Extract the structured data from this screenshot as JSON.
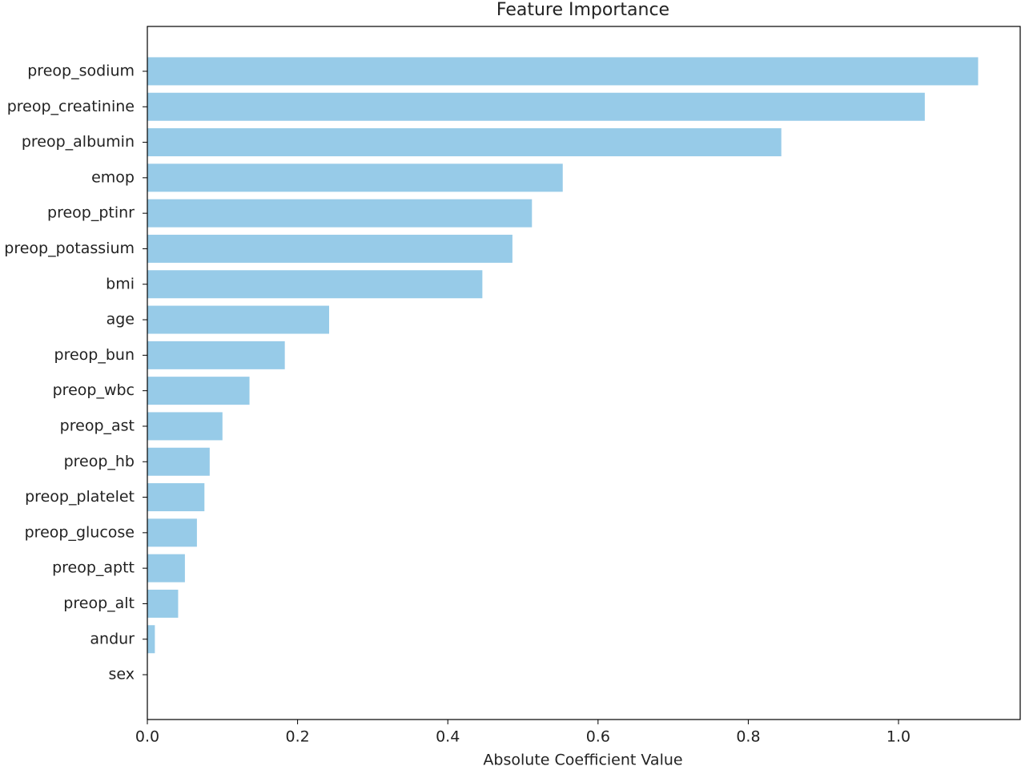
{
  "chart_data": {
    "type": "barh",
    "title": "Feature Importance",
    "x_label": "Absolute Coefficient Value",
    "categories": [
      "preop_sodium",
      "preop_creatinine",
      "preop_albumin",
      "emop",
      "preop_ptinr",
      "preop_potassium",
      "bmi",
      "age",
      "preop_bun",
      "preop_wbc",
      "preop_ast",
      "preop_hb",
      "preop_platelet",
      "preop_glucose",
      "preop_aptt",
      "preop_alt",
      "andur",
      "sex"
    ],
    "values": [
      1.106,
      1.035,
      0.844,
      0.553,
      0.512,
      0.486,
      0.446,
      0.242,
      0.183,
      0.136,
      0.1,
      0.083,
      0.076,
      0.066,
      0.05,
      0.041,
      0.01,
      0
    ],
    "color": "#97cbe8",
    "xlim": [
      0,
      1.162
    ],
    "xticks": [
      {
        "value": 0,
        "label": "0.0"
      },
      0.2,
      0.4,
      0.6,
      0.8,
      {
        "value": 1,
        "label": "1.0"
      }
    ],
    "grid": false
  }
}
